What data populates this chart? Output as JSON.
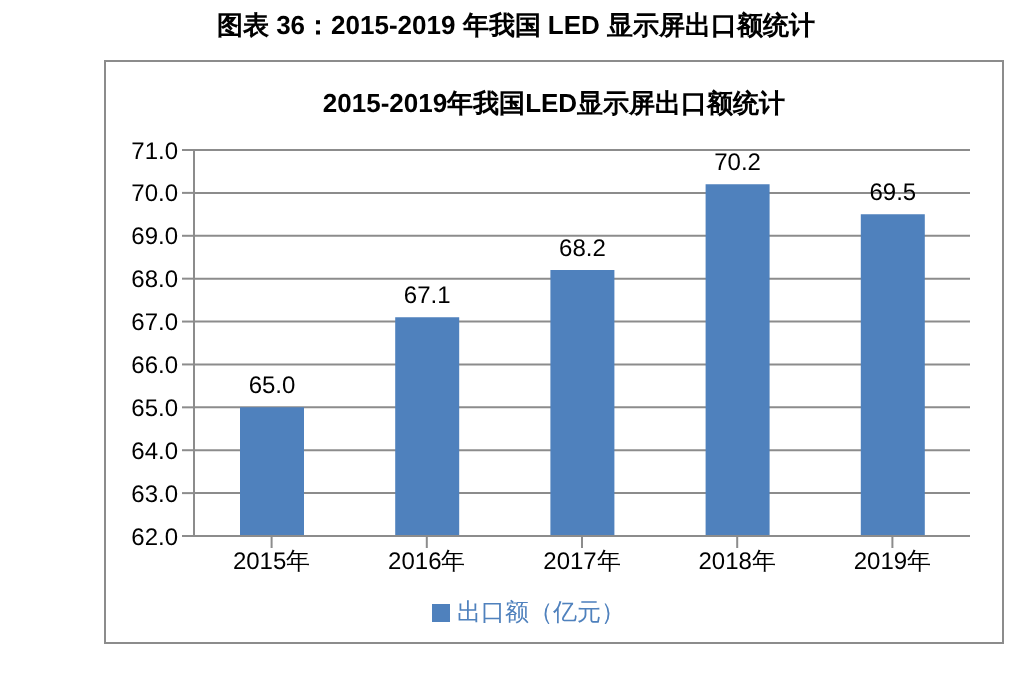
{
  "chart_data": {
    "type": "bar",
    "title": "图表 36：2015-2019 年我国 LED 显示屏出口额统计",
    "subtitle": "2015-2019年我国LED显示屏出口额统计",
    "categories": [
      "2015年",
      "2016年",
      "2017年",
      "2018年",
      "2019年"
    ],
    "series": [
      {
        "name": "出口额（亿元）",
        "color": "#4f81bd",
        "values": [
          65.0,
          67.1,
          68.2,
          70.2,
          69.5
        ],
        "value_labels": [
          "65.0",
          "67.1",
          "68.2",
          "70.2",
          "69.5"
        ]
      }
    ],
    "ylim": [
      62,
      71
    ],
    "yticks": [
      {
        "value": 62,
        "label": "62.0"
      },
      {
        "value": 63,
        "label": "63.0"
      },
      {
        "value": 64,
        "label": "64.0"
      },
      {
        "value": 65,
        "label": "65.0"
      },
      {
        "value": 66,
        "label": "66.0"
      },
      {
        "value": 67,
        "label": "67.0"
      },
      {
        "value": 68,
        "label": "68.0"
      },
      {
        "value": 69,
        "label": "69.0"
      },
      {
        "value": 70,
        "label": "70.0"
      },
      {
        "value": 71,
        "label": "71.0"
      }
    ],
    "grid": "y",
    "legend": "bottom"
  }
}
